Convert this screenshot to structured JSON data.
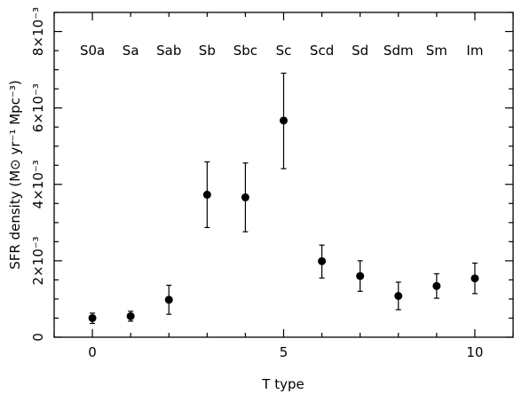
{
  "chart_data": {
    "type": "scatter",
    "title": "",
    "xlabel": "T type",
    "ylabel": "SFR density (M⊙ yr⁻¹ Mpc⁻³)",
    "xlim": [
      -1.0,
      11.0
    ],
    "ylim": [
      0.0,
      0.0085
    ],
    "x_ticks": [
      0,
      5,
      10
    ],
    "x_tick_labels": [
      "0",
      "5",
      "10"
    ],
    "y_ticks": [
      0.0,
      0.002,
      0.004,
      0.006,
      0.008
    ],
    "y_tick_labels": [
      "0",
      "2×10⁻³",
      "4×10⁻³",
      "6×10⁻³",
      "8×10⁻³"
    ],
    "categories": [
      "S0a",
      "Sa",
      "Sab",
      "Sb",
      "Sbc",
      "Sc",
      "Scd",
      "Sd",
      "Sdm",
      "Sm",
      "Im"
    ],
    "series": [
      {
        "x": [
          0,
          1,
          2,
          3,
          4,
          5,
          6,
          7,
          8,
          9,
          10
        ],
        "y": [
          0.0005,
          0.00055,
          0.00098,
          0.00373,
          0.00366,
          0.00567,
          0.00199,
          0.0016,
          0.00108,
          0.00134,
          0.00154
        ],
        "y_err_low": [
          0.00014,
          0.00013,
          0.00038,
          0.00086,
          0.0009,
          0.00126,
          0.00044,
          0.0004,
          0.00036,
          0.00032,
          0.0004
        ],
        "y_err_high": [
          0.00013,
          0.00013,
          0.00038,
          0.00086,
          0.0009,
          0.00124,
          0.00042,
          0.0004,
          0.00036,
          0.00032,
          0.0004
        ]
      }
    ],
    "grid": false,
    "legend": "none"
  }
}
